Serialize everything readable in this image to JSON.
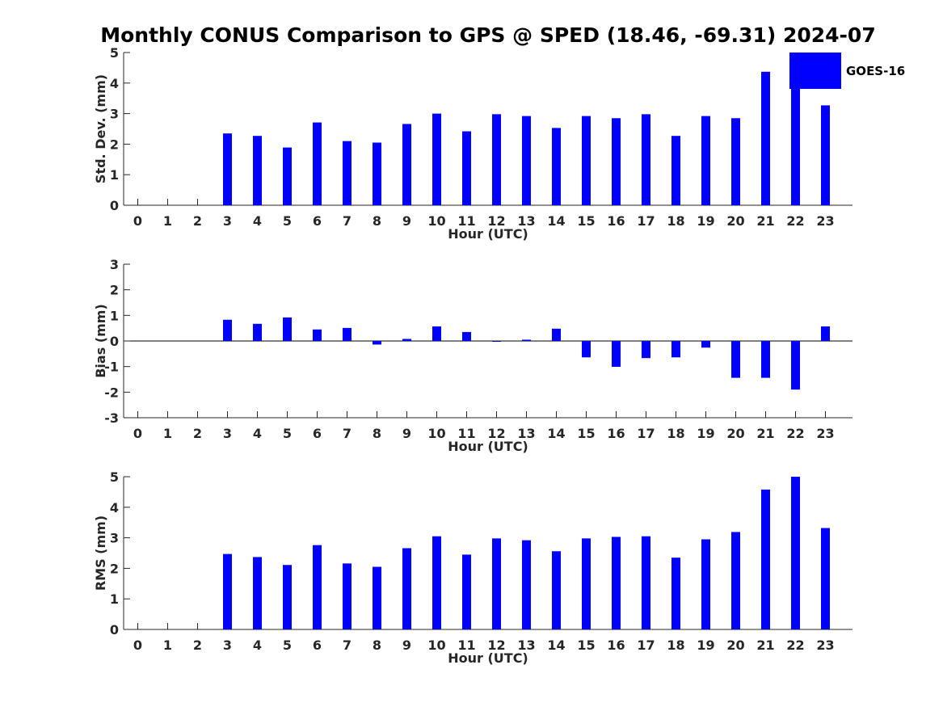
{
  "page": {
    "title": "Monthly CONUS Comparison to GPS @ SPED (18.46, -69.31) 2024-07"
  },
  "colors": {
    "bar": "#0000ff",
    "axis": "#262626",
    "background": "#ffffff"
  },
  "legend": {
    "label": "GOES-16",
    "placement": "top-right"
  },
  "chart_data": [
    {
      "type": "bar",
      "title": "Monthly CONUS Comparison to GPS @ SPED (18.46, -69.31) 2024-07",
      "xlabel": "Hour (UTC)",
      "ylabel": "Std. Dev. (mm)",
      "ylim": [
        0,
        5
      ],
      "yticks": [
        0,
        1,
        2,
        3,
        4,
        5
      ],
      "categories": [
        "0",
        "1",
        "2",
        "3",
        "4",
        "5",
        "6",
        "7",
        "8",
        "9",
        "10",
        "11",
        "12",
        "13",
        "14",
        "15",
        "16",
        "17",
        "18",
        "19",
        "20",
        "21",
        "22",
        "23"
      ],
      "series": [
        {
          "name": "GOES-16",
          "values": [
            null,
            null,
            null,
            2.35,
            2.27,
            1.89,
            2.71,
            2.1,
            2.05,
            2.66,
            3.0,
            2.42,
            2.98,
            2.92,
            2.53,
            2.92,
            2.85,
            2.98,
            2.27,
            2.92,
            2.85,
            4.37,
            3.85,
            3.27
          ]
        }
      ],
      "grid": false
    },
    {
      "type": "bar",
      "xlabel": "Hour (UTC)",
      "ylabel": "Bias (mm)",
      "ylim": [
        -3,
        3
      ],
      "yticks": [
        -3,
        -2,
        -1,
        0,
        1,
        2,
        3
      ],
      "categories": [
        "0",
        "1",
        "2",
        "3",
        "4",
        "5",
        "6",
        "7",
        "8",
        "9",
        "10",
        "11",
        "12",
        "13",
        "14",
        "15",
        "16",
        "17",
        "18",
        "19",
        "20",
        "21",
        "22",
        "23"
      ],
      "series": [
        {
          "name": "GOES-16",
          "values": [
            null,
            null,
            null,
            0.83,
            0.67,
            0.92,
            0.45,
            0.51,
            -0.14,
            0.08,
            0.57,
            0.35,
            -0.03,
            0.05,
            0.48,
            -0.64,
            -1.01,
            -0.67,
            -0.64,
            -0.26,
            -1.44,
            -1.44,
            -1.9,
            0.57
          ]
        }
      ],
      "grid": false
    },
    {
      "type": "bar",
      "xlabel": "Hour (UTC)",
      "ylabel": "RMS (mm)",
      "ylim": [
        0,
        5
      ],
      "yticks": [
        0,
        1,
        2,
        3,
        4,
        5
      ],
      "categories": [
        "0",
        "1",
        "2",
        "3",
        "4",
        "5",
        "6",
        "7",
        "8",
        "9",
        "10",
        "11",
        "12",
        "13",
        "14",
        "15",
        "16",
        "17",
        "18",
        "19",
        "20",
        "21",
        "22",
        "23"
      ],
      "series": [
        {
          "name": "GOES-16",
          "values": [
            null,
            null,
            null,
            2.47,
            2.37,
            2.11,
            2.76,
            2.16,
            2.05,
            2.66,
            3.05,
            2.45,
            2.98,
            2.92,
            2.56,
            2.98,
            3.03,
            3.05,
            2.35,
            2.95,
            3.19,
            4.58,
            5.0,
            3.32
          ]
        }
      ],
      "grid": false
    }
  ]
}
